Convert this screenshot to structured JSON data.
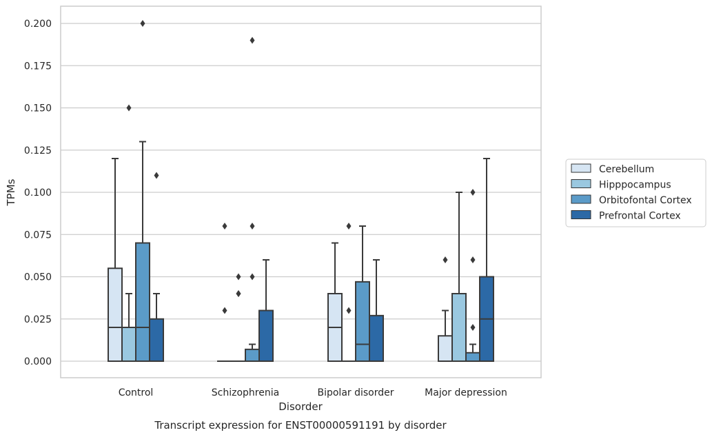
{
  "chart_data": {
    "type": "box",
    "title": "",
    "caption": "Transcript expression for ENST00000591191 by disorder",
    "xlabel": "Disorder",
    "ylabel": "TPMs",
    "ylim": [
      -0.01,
      0.21
    ],
    "yticks": [
      0.0,
      0.025,
      0.05,
      0.075,
      0.1,
      0.125,
      0.15,
      0.175,
      0.2
    ],
    "ytick_labels": [
      "0.000",
      "0.025",
      "0.050",
      "0.075",
      "0.100",
      "0.125",
      "0.150",
      "0.175",
      "0.200"
    ],
    "grid": "horizontal",
    "legend_position": "right",
    "categories": [
      "Control",
      "Schizophrenia",
      "Bipolar disorder",
      "Major depression"
    ],
    "series": [
      {
        "name": "Cerebellum",
        "color": "#d6e5f3",
        "boxes": [
          {
            "whisker_low": 0.0,
            "q1": 0.0,
            "median": 0.02,
            "q3": 0.055,
            "whisker_high": 0.12,
            "outliers": []
          },
          {
            "whisker_low": 0.0,
            "q1": 0.0,
            "median": 0.0,
            "q3": 0.0,
            "whisker_high": 0.0,
            "outliers": [
              0.03,
              0.08
            ]
          },
          {
            "whisker_low": 0.0,
            "q1": 0.0,
            "median": 0.02,
            "q3": 0.04,
            "whisker_high": 0.07,
            "outliers": []
          },
          {
            "whisker_low": 0.0,
            "q1": 0.0,
            "median": 0.0,
            "q3": 0.015,
            "whisker_high": 0.03,
            "outliers": [
              0.06
            ]
          }
        ]
      },
      {
        "name": "Hipppocampus",
        "color": "#9ac8e0",
        "boxes": [
          {
            "whisker_low": 0.0,
            "q1": 0.0,
            "median": 0.02,
            "q3": 0.02,
            "whisker_high": 0.04,
            "outliers": [
              0.15
            ]
          },
          {
            "whisker_low": 0.0,
            "q1": 0.0,
            "median": 0.0,
            "q3": 0.0,
            "whisker_high": 0.0,
            "outliers": [
              0.04,
              0.04,
              0.05
            ]
          },
          {
            "whisker_low": 0.0,
            "q1": 0.0,
            "median": 0.0,
            "q3": 0.0,
            "whisker_high": 0.0,
            "outliers": [
              0.03,
              0.08
            ]
          },
          {
            "whisker_low": 0.0,
            "q1": 0.0,
            "median": 0.0,
            "q3": 0.04,
            "whisker_high": 0.1,
            "outliers": []
          }
        ]
      },
      {
        "name": "Orbitofontal Cortex",
        "color": "#5b9bc8",
        "boxes": [
          {
            "whisker_low": 0.0,
            "q1": 0.0,
            "median": 0.02,
            "q3": 0.07,
            "whisker_high": 0.13,
            "outliers": [
              0.2
            ]
          },
          {
            "whisker_low": 0.0,
            "q1": 0.0,
            "median": 0.0,
            "q3": 0.007,
            "whisker_high": 0.01,
            "outliers": [
              0.05,
              0.08,
              0.19
            ]
          },
          {
            "whisker_low": 0.0,
            "q1": 0.0,
            "median": 0.01,
            "q3": 0.047,
            "whisker_high": 0.08,
            "outliers": []
          },
          {
            "whisker_low": 0.0,
            "q1": 0.0,
            "median": 0.0,
            "q3": 0.005,
            "whisker_high": 0.01,
            "outliers": [
              0.02,
              0.06,
              0.1
            ]
          }
        ]
      },
      {
        "name": "Prefrontal Cortex",
        "color": "#2c69a6",
        "boxes": [
          {
            "whisker_low": 0.0,
            "q1": 0.0,
            "median": 0.0,
            "q3": 0.025,
            "whisker_high": 0.04,
            "outliers": [
              0.11
            ]
          },
          {
            "whisker_low": 0.0,
            "q1": 0.0,
            "median": 0.0,
            "q3": 0.03,
            "whisker_high": 0.06,
            "outliers": []
          },
          {
            "whisker_low": 0.0,
            "q1": 0.0,
            "median": 0.0,
            "q3": 0.027,
            "whisker_high": 0.06,
            "outliers": []
          },
          {
            "whisker_low": 0.0,
            "q1": 0.0,
            "median": 0.025,
            "q3": 0.05,
            "whisker_high": 0.12,
            "outliers": []
          }
        ]
      }
    ]
  }
}
